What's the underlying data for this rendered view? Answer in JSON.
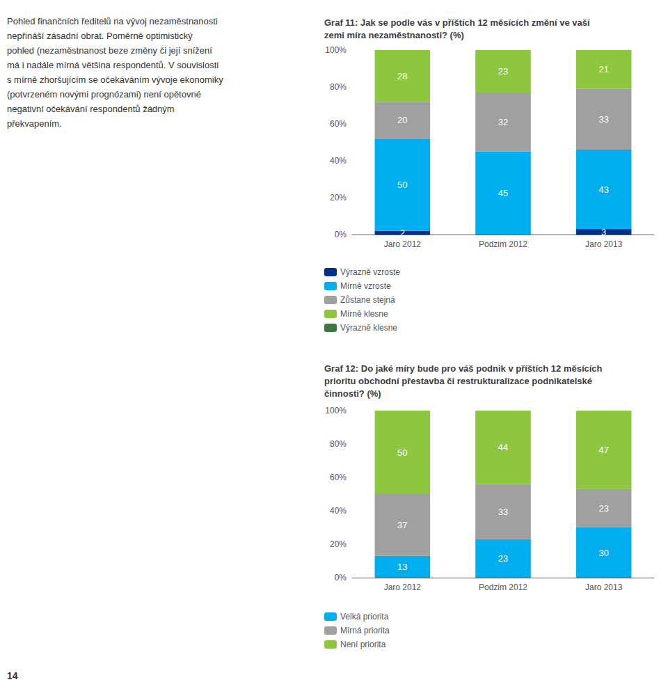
{
  "chart_data": [
    {
      "type": "bar",
      "stacked": true,
      "data_labels": true,
      "grid": false,
      "title": "Graf 11: Jak se podle vás v příštích 12 měsících změní ve vaší\nzemi míra nezaměstnanosti? (%)",
      "categories": [
        "Jaro 2012",
        "Podzim 2012",
        "Jaro 2013"
      ],
      "series": [
        {
          "name": "Výrazně vzroste",
          "values": [
            2,
            0,
            3
          ],
          "color": "#003087"
        },
        {
          "name": "Mírně vzroste",
          "values": [
            50,
            45,
            43
          ],
          "color": "#00aeef"
        },
        {
          "name": "Zůstane stejná",
          "values": [
            20,
            32,
            33
          ],
          "color": "#a0a0a0"
        },
        {
          "name": "Mírně klesne",
          "values": [
            28,
            23,
            21
          ],
          "color": "#8dc63f"
        },
        {
          "name": "Výrazně klesne",
          "values": [
            0,
            0,
            0
          ],
          "color": "#3d7a3d"
        }
      ],
      "ylim": [
        0,
        100
      ],
      "yticks": [
        {
          "value": 0,
          "label": "0%"
        },
        {
          "value": 20,
          "label": "20%"
        },
        {
          "value": 40,
          "label": "40%"
        },
        {
          "value": 60,
          "label": "60%"
        },
        {
          "value": 80,
          "label": "80%"
        },
        {
          "value": 100,
          "label": "100%"
        }
      ]
    },
    {
      "type": "bar",
      "stacked": true,
      "data_labels": true,
      "grid": false,
      "title": "Graf 12: Do jaké míry bude pro váš podnik v příštích 12 měsících\nprioritu obchodní přestavba či restrukturalizace podnikatelské\nčinnosti? (%)",
      "categories": [
        "Jaro 2012",
        "Podzim 2012",
        "Jaro 2013"
      ],
      "series": [
        {
          "name": "Velká priorita",
          "values": [
            13,
            23,
            30
          ],
          "color": "#00aeef"
        },
        {
          "name": "Mírná priorita",
          "values": [
            37,
            33,
            23
          ],
          "color": "#a0a0a0"
        },
        {
          "name": "Není priorita",
          "values": [
            50,
            44,
            47
          ],
          "color": "#8dc63f"
        }
      ],
      "ylim": [
        0,
        100
      ],
      "yticks": [
        {
          "value": 0,
          "label": "0%"
        },
        {
          "value": 20,
          "label": "20%"
        },
        {
          "value": 40,
          "label": "40%"
        },
        {
          "value": 60,
          "label": "60%"
        },
        {
          "value": 80,
          "label": "80%"
        },
        {
          "value": 100,
          "label": "100%"
        }
      ]
    }
  ],
  "annotations": [
    "Pohled finančních ředitelů na vývoj nezaměstnanosti\nnepřináší zásadní obrat. Poměrně optimistický\npohled (nezaměstnanost beze změny či její snížení\nmá i nadále mírná většina respondentů. V souvislosti\ns mírně zhoršujícím se očekáváním vývoje ekonomiky\n(potvrzeném novými prognózami) není opětovné\nnegativní očekávání respondentů žádným\npřekvapením.",
    "14"
  ]
}
